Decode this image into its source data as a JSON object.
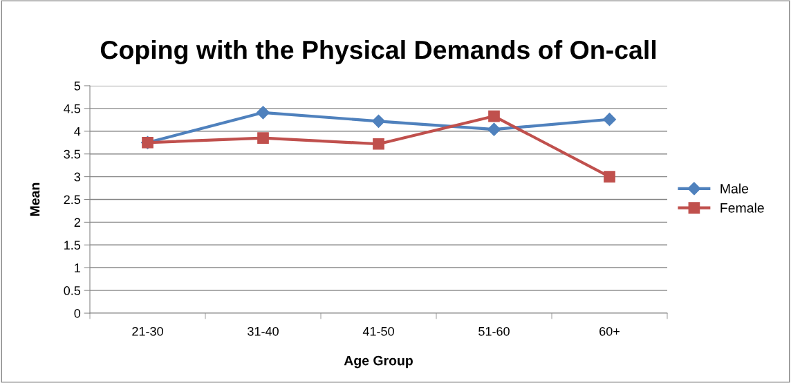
{
  "chart_data": {
    "type": "line",
    "title": "Coping with the Physical Demands of On-call",
    "xlabel": "Age Group",
    "ylabel": "Mean",
    "categories": [
      "21-30",
      "31-40",
      "41-50",
      "51-60",
      "60+"
    ],
    "series": [
      {
        "name": "Male",
        "color": "#4f81bd",
        "marker": "diamond",
        "values": [
          3.75,
          4.41,
          4.22,
          4.04,
          4.26
        ]
      },
      {
        "name": "Female",
        "color": "#c0504d",
        "marker": "square",
        "values": [
          3.75,
          3.85,
          3.72,
          4.33,
          3.0
        ]
      }
    ],
    "ylim": [
      0,
      5
    ],
    "yticks": [
      0,
      0.5,
      1,
      1.5,
      2,
      2.5,
      3,
      3.5,
      4,
      4.5,
      5
    ],
    "grid": "y",
    "legend": "right",
    "line_style": "solid"
  }
}
